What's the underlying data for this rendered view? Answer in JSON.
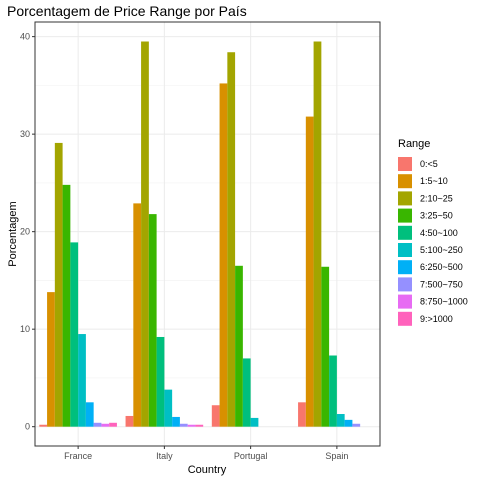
{
  "chart_data": {
    "type": "bar",
    "title": "Porcentagem de Price Range por País",
    "xlabel": "Country",
    "ylabel": "Porcentagem",
    "categories": [
      "France",
      "Italy",
      "Portugal",
      "Spain"
    ],
    "ylim": [
      -1.98,
      41.5
    ],
    "yticks": [
      0,
      10,
      20,
      30,
      40
    ],
    "grid": true,
    "legend_position": "right",
    "legend_title": "Range",
    "series": [
      {
        "name": "0:<5",
        "color": "#F8766D",
        "values": [
          0.2,
          1.1,
          2.2,
          2.5
        ]
      },
      {
        "name": "1:5~10",
        "color": "#D89000",
        "values": [
          13.8,
          22.9,
          35.2,
          31.8
        ]
      },
      {
        "name": "2:10~25",
        "color": "#A3A500",
        "values": [
          29.1,
          39.5,
          38.4,
          39.5
        ]
      },
      {
        "name": "3:25~50",
        "color": "#39B600",
        "values": [
          24.8,
          21.8,
          16.5,
          16.4
        ]
      },
      {
        "name": "4:50~100",
        "color": "#00BF7D",
        "values": [
          18.9,
          9.2,
          7.0,
          7.3
        ]
      },
      {
        "name": "5:100~250",
        "color": "#00BFC4",
        "values": [
          9.5,
          3.8,
          0.9,
          1.3
        ]
      },
      {
        "name": "6:250~500",
        "color": "#00B0F6",
        "values": [
          2.5,
          1.0,
          0.0,
          0.7
        ]
      },
      {
        "name": "7:500~750",
        "color": "#9590FF",
        "values": [
          0.4,
          0.3,
          0.0,
          0.3
        ]
      },
      {
        "name": "8:750~1000",
        "color": "#E76BF3",
        "values": [
          0.3,
          0.2,
          0.0,
          0.0
        ]
      },
      {
        "name": "9:>1000",
        "color": "#FF62BC",
        "values": [
          0.4,
          0.2,
          0.0,
          0.0
        ]
      }
    ]
  }
}
